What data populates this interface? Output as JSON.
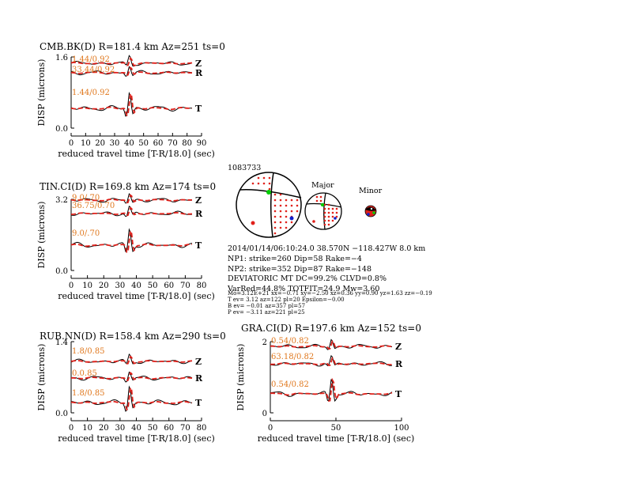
{
  "colors": {
    "data": "#000000",
    "synthetic": "#e0201a",
    "shift_label": "#e0781e",
    "pressure_dot": "#e0201a",
    "nodal_dot": "#00cc00",
    "t_axis_dot": "#1020cc"
  },
  "event": {
    "id": "1083733",
    "origin": "2014/01/14/06:10:24.0 38.570N −118.427W 8.0 km",
    "np1": "NP1: strike=260 Dip=58 Rake=−4",
    "np2": "NP2: strike=352 Dip=87 Rake=−148",
    "deviatoric": "DEVIATORIC MT DC=99.2% CLVD=0.8%",
    "varred": "VarRed=44.8% TOTFIT=24.9 Mw=3.60",
    "mo": "Mo=3.12E+21 xx=−0.71 xy=−2.50 xz=0.36 yy=0.90 yz=1.63 zz=−0.19",
    "tev": "T ev=  3.12 az=122 pl=20 Epsilon=−0.00",
    "bev": "B ev= −0.01 az=357 pl=57",
    "pev": "P ev= −3.11 az=221 pl=25",
    "major_label": "Major",
    "minor_label": "Minor"
  },
  "chart_data": [
    {
      "type": "line",
      "title": "CMB.BK(D) R=181.4 km Az=251 ts=0",
      "xlabel": "reduced travel time [T-R/18.0] (sec)",
      "ylabel": "DISP (microns)",
      "xlim": [
        0,
        90
      ],
      "xticks": [
        "0",
        "10",
        "20",
        "30",
        "40",
        "50",
        "60",
        "70",
        "80",
        "90"
      ],
      "ylim": [
        0,
        1.6
      ],
      "yticks": [
        "0.0",
        "1.6"
      ],
      "traces": [
        {
          "component": "Z",
          "shift_label": "1.44/0.92"
        },
        {
          "component": "R",
          "shift_label": "33.44/0.92"
        },
        {
          "component": "T",
          "shift_label": "1.44/0.92"
        }
      ]
    },
    {
      "type": "line",
      "title": "TIN.CI(D) R=169.8 km Az=174 ts=0",
      "xlabel": "reduced travel time [T-R/18.0] (sec)",
      "ylabel": "DISP (microns)",
      "xlim": [
        0,
        80
      ],
      "xticks": [
        "0",
        "10",
        "20",
        "30",
        "40",
        "50",
        "60",
        "70",
        "80"
      ],
      "ylim": [
        0,
        3.2
      ],
      "yticks": [
        "0.0",
        "3.2"
      ],
      "traces": [
        {
          "component": "Z",
          "shift_label": "9.0/.70"
        },
        {
          "component": "R",
          "shift_label": "36.75/0.70"
        },
        {
          "component": "T",
          "shift_label": "9.0/.70"
        }
      ]
    },
    {
      "type": "line",
      "title": "RUB.NN(D) R=158.4 km Az=290 ts=0",
      "xlabel": "reduced travel time [T-R/18.0] (sec)",
      "ylabel": "DISP (microns)",
      "xlim": [
        0,
        80
      ],
      "xticks": [
        "0",
        "10",
        "20",
        "30",
        "40",
        "50",
        "60",
        "70",
        "80"
      ],
      "ylim": [
        0,
        1.4
      ],
      "yticks": [
        "0.0",
        "1.4"
      ],
      "traces": [
        {
          "component": "Z",
          "shift_label": "1.8/0.85"
        },
        {
          "component": "R",
          "shift_label": "0.0.85"
        },
        {
          "component": "T",
          "shift_label": "1.8/0.85"
        }
      ]
    },
    {
      "type": "line",
      "title": "GRA.CI(D) R=197.6 km Az=152 ts=0",
      "xlabel": "reduced travel time [T-R/18.0] (sec)",
      "ylabel": "DISP (microns)",
      "xlim": [
        0,
        100
      ],
      "xticks": [
        "0",
        "50",
        "100"
      ],
      "ylim": [
        0,
        2
      ],
      "yticks": [
        "0",
        "2"
      ],
      "traces": [
        {
          "component": "Z",
          "shift_label": "0.54/0.82"
        },
        {
          "component": "R",
          "shift_label": "63.18/0.82"
        },
        {
          "component": "T",
          "shift_label": "0.54/0.82"
        }
      ]
    }
  ]
}
